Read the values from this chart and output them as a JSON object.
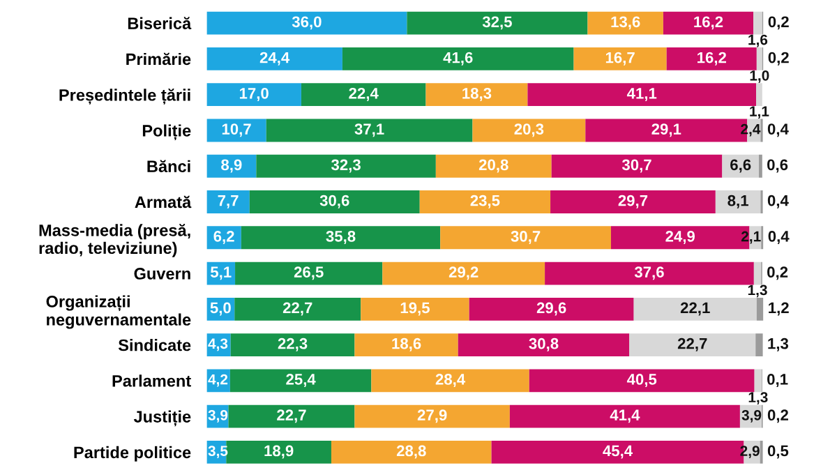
{
  "chart_data": {
    "type": "bar",
    "orientation": "horizontal",
    "stacked": true,
    "categories": [
      "Biserică",
      "Primărie",
      "Președintele țării",
      "Poliție",
      "Bănci",
      "Armată",
      "Mass-media (presă, radio, televiziune)",
      "Guvern",
      "Organizații neguvernamentale",
      "Sindicate",
      "Parlament",
      "Justiție",
      "Partide politice"
    ],
    "series": [
      {
        "color": "#1ea7e1",
        "values": [
          36.0,
          24.4,
          17.0,
          10.7,
          8.9,
          7.7,
          6.2,
          5.1,
          5.0,
          4.3,
          4.2,
          3.9,
          3.5
        ],
        "value_labels": [
          "36,0",
          "24,4",
          "17,0",
          "10,7",
          "8,9",
          "7,7",
          "6,2",
          "5,1",
          "5,0",
          "4,3",
          "4,2",
          "3,9",
          "3,5"
        ]
      },
      {
        "color": "#17944a",
        "values": [
          32.5,
          41.6,
          22.4,
          37.1,
          32.3,
          30.6,
          35.8,
          26.5,
          22.7,
          22.3,
          25.4,
          22.7,
          18.9
        ],
        "value_labels": [
          "32,5",
          "41,6",
          "22,4",
          "37,1",
          "32,3",
          "30,6",
          "35,8",
          "26,5",
          "22,7",
          "22,3",
          "25,4",
          "22,7",
          "18,9"
        ]
      },
      {
        "color": "#f4a631",
        "values": [
          13.6,
          16.7,
          18.3,
          20.3,
          20.8,
          23.5,
          30.7,
          29.2,
          19.5,
          18.6,
          28.4,
          27.9,
          28.8
        ],
        "value_labels": [
          "13,6",
          "16,7",
          "18,3",
          "20,3",
          "20,8",
          "23,5",
          "30,7",
          "29,2",
          "19,5",
          "18,6",
          "28,4",
          "27,9",
          "28,8"
        ]
      },
      {
        "color": "#cc0d66",
        "values": [
          16.2,
          16.2,
          41.1,
          29.1,
          30.7,
          29.7,
          24.9,
          37.6,
          29.6,
          30.8,
          40.5,
          41.4,
          45.4
        ],
        "value_labels": [
          "16,2",
          "16,2",
          "41,1",
          "29,1",
          "30,7",
          "29,7",
          "24,9",
          "37,6",
          "29,6",
          "30,8",
          "40,5",
          "41,4",
          "45,4"
        ]
      },
      {
        "color": "#d8d8d8",
        "values": [
          1.6,
          1.0,
          1.1,
          2.4,
          6.6,
          8.1,
          2.1,
          1.3,
          22.1,
          22.7,
          1.3,
          3.9,
          2.9
        ],
        "value_labels": [
          "1,6",
          "1,0",
          "1,1",
          "2,4",
          "6,6",
          "8,1",
          "2,1",
          "1,3",
          "22,1",
          "22,7",
          "1,3",
          "3,9",
          "2,9"
        ]
      },
      {
        "color": "#9b9b9b",
        "values": [
          0.2,
          0.2,
          null,
          0.4,
          0.6,
          0.4,
          0.4,
          0.2,
          1.2,
          1.3,
          0.1,
          0.2,
          0.5
        ],
        "value_labels": [
          "0,2",
          "0,2",
          null,
          "0,4",
          "0,6",
          "0,4",
          "0,4",
          "0,2",
          "1,2",
          "1,3",
          "0,1",
          "0,2",
          "0,5"
        ]
      }
    ]
  }
}
